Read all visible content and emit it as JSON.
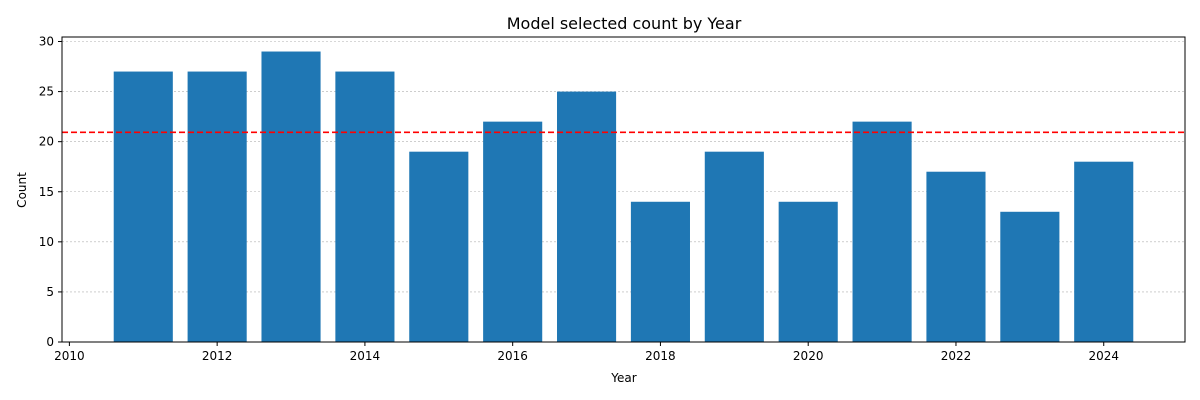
{
  "chart_data": {
    "type": "bar",
    "title": "Model selected count by Year",
    "xlabel": "Year",
    "ylabel": "Count",
    "x": [
      2011,
      2012,
      2013,
      2014,
      2015,
      2016,
      2017,
      2018,
      2019,
      2020,
      2021,
      2022,
      2023,
      2024
    ],
    "values": [
      27,
      27,
      29,
      27,
      19,
      22,
      25,
      14,
      19,
      14,
      22,
      17,
      13,
      18
    ],
    "xlim": [
      2009.9,
      2025.1
    ],
    "ylim": [
      0,
      30.45
    ],
    "xticks": [
      2010,
      2012,
      2014,
      2016,
      2018,
      2020,
      2022,
      2024
    ],
    "yticks": [
      0,
      5,
      10,
      15,
      20,
      25,
      30
    ],
    "grid": "y-dashed",
    "bar_color": "#1f77b4",
    "reference_line": {
      "y": 20.93,
      "color": "#ff0000",
      "style": "dashed"
    }
  }
}
